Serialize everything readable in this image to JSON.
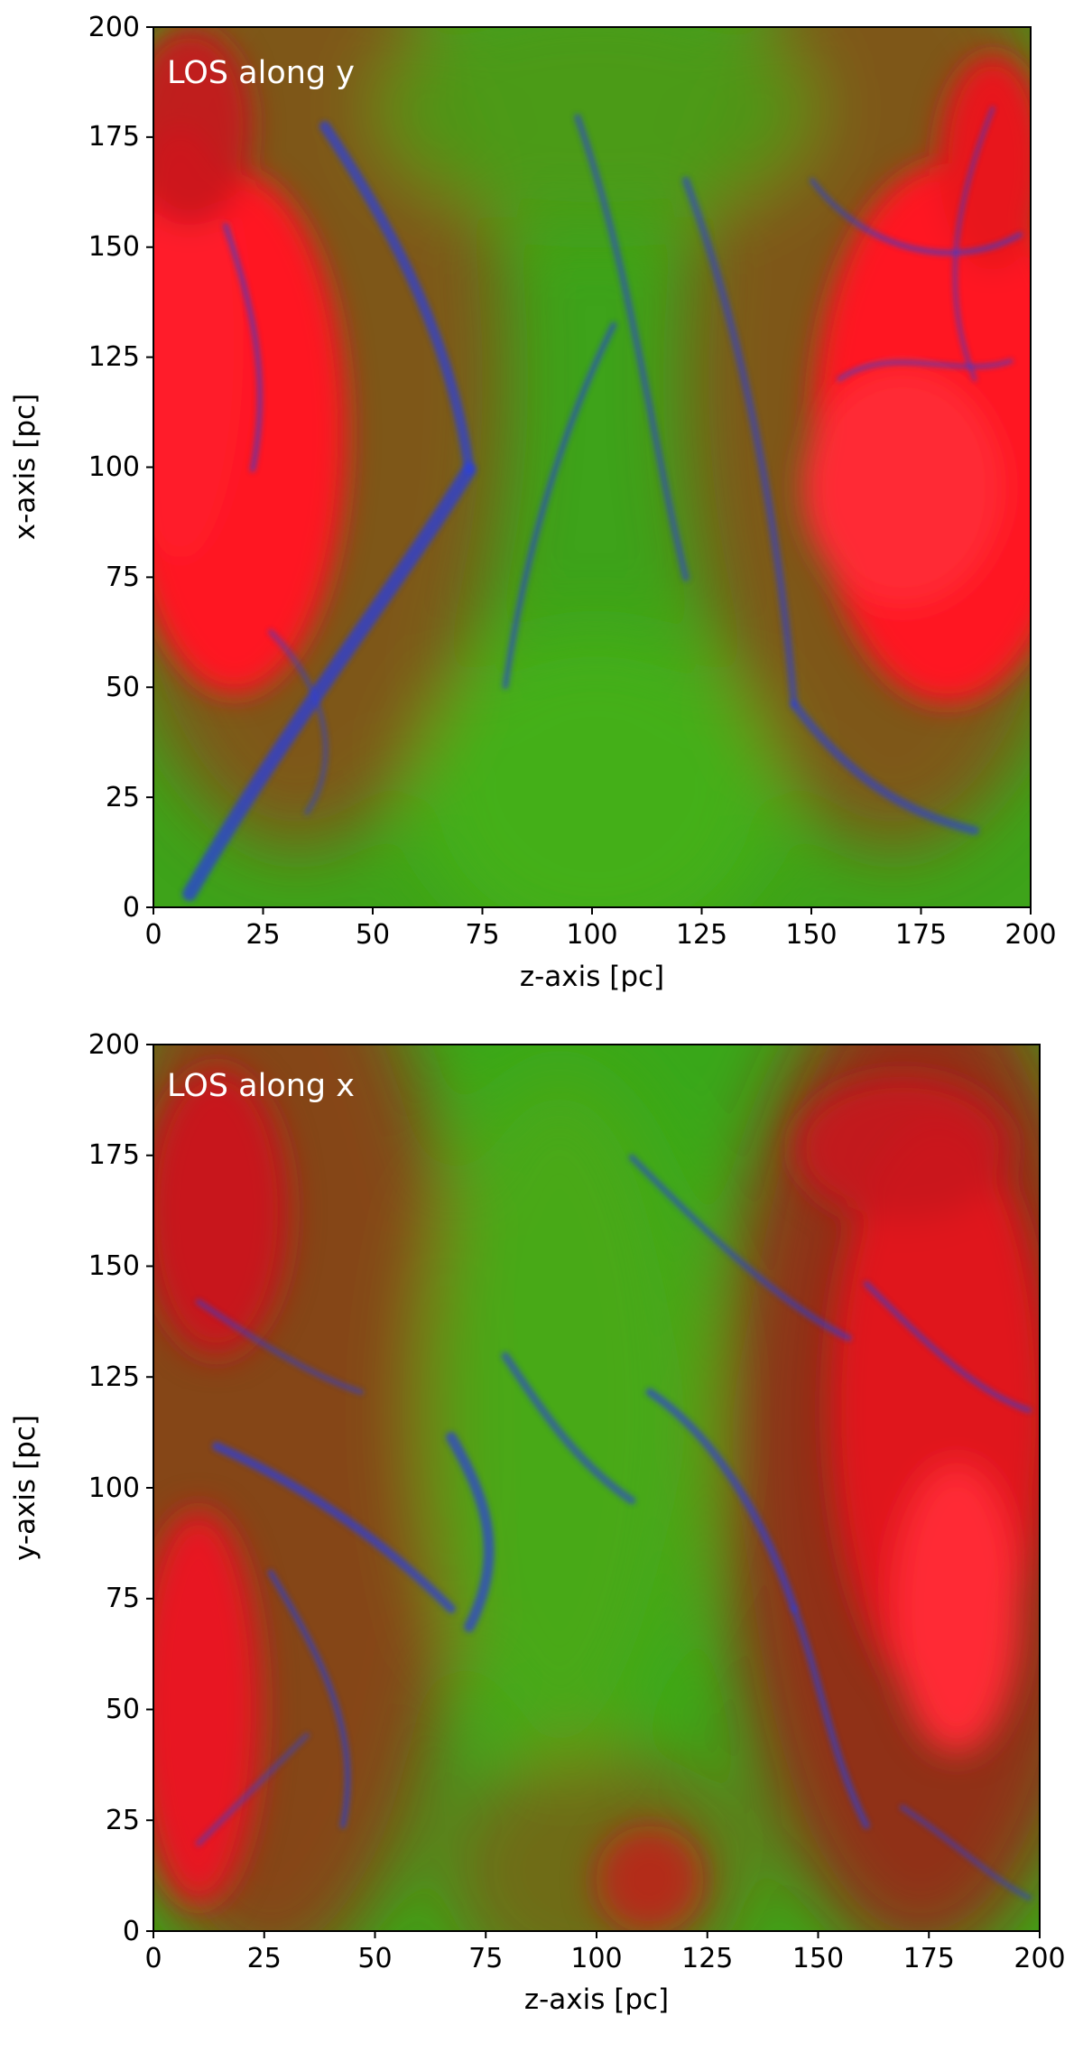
{
  "colors": {
    "hot_gas": "#ff1a24",
    "warm_gas": "#3fb21a",
    "cold_gas": "#2238e0",
    "label_text": "#ffffff",
    "axis_text": "#000000"
  },
  "panels": [
    {
      "los_label": "LOS along y",
      "xlabel": "z-axis [pc]",
      "ylabel": "x-axis [pc]",
      "xlim": [
        0,
        200
      ],
      "ylim": [
        0,
        200
      ],
      "xticks": [
        "0",
        "25",
        "50",
        "75",
        "100",
        "125",
        "150",
        "175",
        "200"
      ],
      "yticks": [
        "0",
        "25",
        "50",
        "75",
        "100",
        "125",
        "150",
        "175",
        "200"
      ]
    },
    {
      "los_label": "LOS along x",
      "xlabel": "z-axis [pc]",
      "ylabel": "y-axis [pc]",
      "xlim": [
        0,
        200
      ],
      "ylim": [
        0,
        200
      ],
      "xticks": [
        "0",
        "25",
        "50",
        "75",
        "100",
        "125",
        "150",
        "175",
        "200"
      ],
      "yticks": [
        "0",
        "25",
        "50",
        "75",
        "100",
        "125",
        "150",
        "175",
        "200"
      ]
    }
  ]
}
